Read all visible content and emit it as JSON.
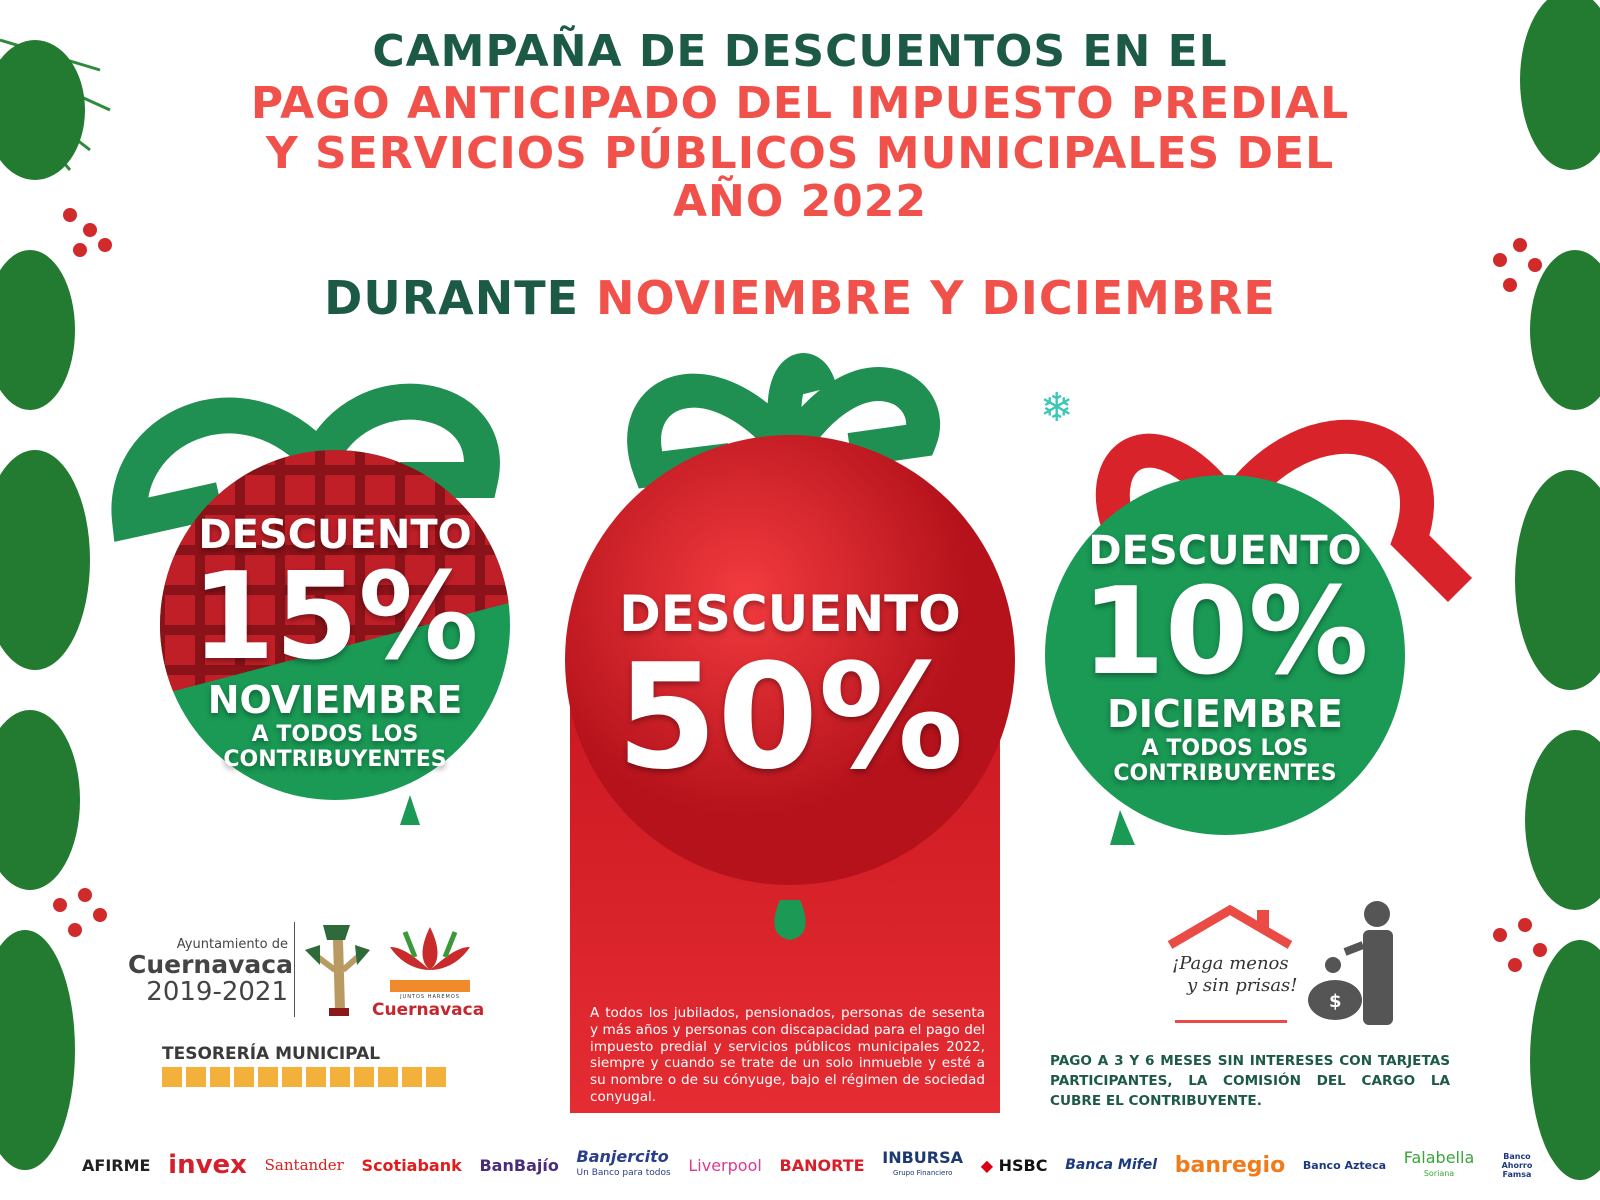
{
  "heading": {
    "line1": "CAMPAÑA DE DESCUENTOS EN EL",
    "line2": "PAGO ANTICIPADO DEL IMPUESTO PREDIAL",
    "line3": "Y SERVICIOS PÚBLICOS MUNICIPALES DEL",
    "line4": "AÑO 2022"
  },
  "period": {
    "prefix": "DURANTE",
    "months": "NOVIEMBRE Y DICIEMBRE"
  },
  "left_ball": {
    "label": "DESCUENTO",
    "percent": "15%",
    "month": "NOVIEMBRE",
    "line1": "A TODOS LOS",
    "line2": "CONTRIBUYENTES"
  },
  "center_ball": {
    "label": "DESCUENTO",
    "percent": "50%",
    "description": "A todos los jubilados, pensionados, personas de sesenta y más años y personas con discapacidad para el pago del impuesto predial y servicios públicos municipales 2022, siempre y cuando se trate de un solo inmueble y esté a su nombre o de su cónyuge, bajo el régimen de sociedad conyugal."
  },
  "right_ball": {
    "label": "DESCUENTO",
    "percent": "10%",
    "month": "DICIEMBRE",
    "line1": "A TODOS LOS",
    "line2": "CONTRIBUYENTES"
  },
  "logos": {
    "ayuntamiento": "Ayuntamiento de",
    "city": "Cuernavaca",
    "years": "2019-2021",
    "juntos": "JUNTOS HAREMOS",
    "juntos_city": "Cuernavaca",
    "tesoreria": "TESORERÍA MUNICIPAL"
  },
  "promo": {
    "slogan1": "¡Paga menos",
    "slogan2": "y sin prisas!",
    "note": "PAGO A 3 Y 6 MESES SIN INTERESES CON TARJETAS PARTICIPANTES, LA COMISIÓN DEL CARGO LA CUBRE EL CONTRIBUYENTE."
  },
  "banks": [
    "AFIRME",
    "invex",
    "Santander",
    "Scotiabank",
    "BanBajío",
    "Banjercito",
    "Liverpool",
    "BANORTE",
    "INBURSA",
    "HSBC",
    "Banca Mifel",
    "banregio",
    "Banco Azteca",
    "Falabella",
    "Banco Ahorro Famsa"
  ],
  "bank_subs": {
    "banjercito": "Un Banco para todos",
    "inbursa": "Grupo Financiero",
    "falabella": "Soriana"
  },
  "colors": {
    "green": "#1d5a45",
    "red": "#f0514a",
    "ornament_red": "#d91f2b",
    "ornament_green": "#1a9a55"
  }
}
